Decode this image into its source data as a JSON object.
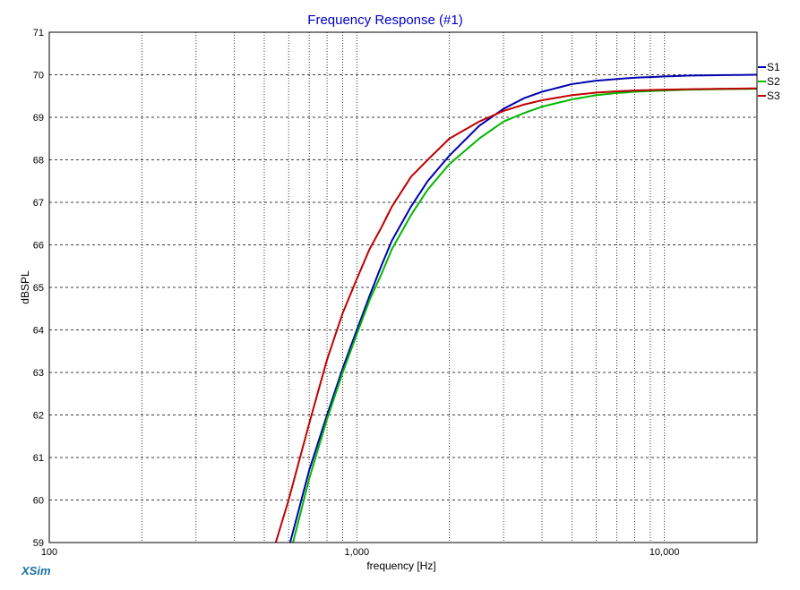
{
  "chart_data": {
    "type": "line",
    "title": "Frequency Response (#1)",
    "xlabel": "frequency [Hz]",
    "ylabel": "dBSPL",
    "x_scale": "log",
    "xlim": [
      100,
      20000
    ],
    "ylim": [
      59,
      71
    ],
    "x_tick_labels": [
      {
        "value": 100,
        "label": "100"
      },
      {
        "value": 1000,
        "label": "1,000"
      },
      {
        "value": 10000,
        "label": "10,000"
      }
    ],
    "y_ticks": [
      59,
      60,
      61,
      62,
      63,
      64,
      65,
      66,
      67,
      68,
      69,
      70,
      71
    ],
    "grid": true,
    "legend_position": "right-top",
    "series": [
      {
        "name": "S1",
        "color": "#0000b0",
        "x": [
          607,
          700,
          800,
          900,
          1000,
          1100,
          1200,
          1300,
          1500,
          1700,
          2000,
          2500,
          3000,
          3500,
          4000,
          5000,
          6000,
          7000,
          8000,
          10000,
          12000,
          15000,
          20000
        ],
        "y": [
          59.0,
          60.7,
          62.0,
          63.1,
          64.0,
          64.8,
          65.5,
          66.1,
          66.9,
          67.5,
          68.1,
          68.8,
          69.2,
          69.45,
          69.6,
          69.78,
          69.86,
          69.9,
          69.93,
          69.96,
          69.98,
          69.99,
          70.0
        ]
      },
      {
        "name": "S2",
        "color": "#00b800",
        "x": [
          620,
          700,
          800,
          900,
          1000,
          1100,
          1200,
          1300,
          1500,
          1700,
          2000,
          2500,
          3000,
          3500,
          4000,
          5000,
          6000,
          7000,
          8000,
          10000,
          12000,
          15000,
          20000
        ],
        "y": [
          59.0,
          60.5,
          61.9,
          63.0,
          63.9,
          64.7,
          65.3,
          65.9,
          66.7,
          67.3,
          67.9,
          68.5,
          68.9,
          69.1,
          69.25,
          69.42,
          69.52,
          69.57,
          69.6,
          69.63,
          69.65,
          69.66,
          69.67
        ]
      },
      {
        "name": "S3",
        "color": "#c00000",
        "x": [
          545,
          600,
          700,
          800,
          900,
          1000,
          1100,
          1200,
          1300,
          1500,
          1700,
          2000,
          2500,
          3000,
          3500,
          4000,
          5000,
          6000,
          7000,
          8000,
          10000,
          12000,
          15000,
          20000
        ],
        "y": [
          59.0,
          60.0,
          61.8,
          63.3,
          64.4,
          65.2,
          65.9,
          66.4,
          66.9,
          67.6,
          68.0,
          68.5,
          68.9,
          69.15,
          69.3,
          69.4,
          69.52,
          69.58,
          69.61,
          69.63,
          69.65,
          69.66,
          69.67,
          69.68
        ]
      }
    ]
  },
  "brand": {
    "label": "XSim",
    "color": "#1a70a0"
  },
  "title_color": "#0000c8"
}
